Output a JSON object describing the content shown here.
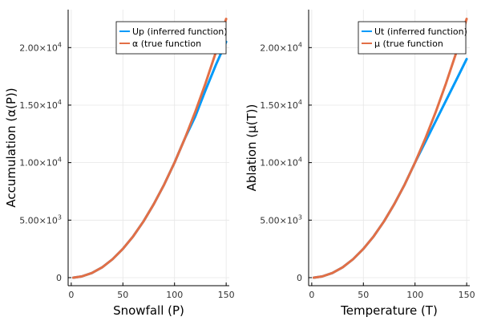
{
  "chart_data": [
    {
      "type": "line",
      "xlabel": "Snowfall (P)",
      "ylabel": "Accumulation (α(P))",
      "xlim": [
        -3,
        153
      ],
      "ylim": [
        -700,
        23300
      ],
      "xticks": [
        0,
        50,
        100,
        150
      ],
      "xtick_labels": [
        "0",
        "50",
        "100",
        "150"
      ],
      "yticks": [
        0,
        5000,
        10000,
        15000,
        20000
      ],
      "ytick_labels": [
        {
          "mantissa": "0",
          "exp": ""
        },
        {
          "mantissa": "5.00×10",
          "exp": "3"
        },
        {
          "mantissa": "1.00×10",
          "exp": "4"
        },
        {
          "mantissa": "1.50×10",
          "exp": "4"
        },
        {
          "mantissa": "2.00×10",
          "exp": "4"
        }
      ],
      "grid": true,
      "legend_position": "top-right",
      "series": [
        {
          "name": "Up (inferred function)",
          "color": "#009af9",
          "x": [
            2,
            10,
            20,
            30,
            40,
            50,
            60,
            70,
            80,
            90,
            100,
            110,
            120,
            130,
            140,
            150
          ],
          "y": [
            0,
            100,
            400,
            900,
            1600,
            2500,
            3600,
            4900,
            6400,
            8100,
            10000,
            12100,
            14000,
            16300,
            18500,
            20500
          ]
        },
        {
          "name": "α (true function",
          "color": "#e26f46",
          "x": [
            2,
            10,
            20,
            30,
            40,
            50,
            60,
            70,
            80,
            90,
            100,
            110,
            120,
            130,
            140,
            150
          ],
          "y": [
            0,
            100,
            400,
            900,
            1600,
            2500,
            3600,
            4900,
            6400,
            8100,
            10000,
            12100,
            14400,
            16900,
            19600,
            22500
          ]
        }
      ]
    },
    {
      "type": "line",
      "xlabel": "Temperature (T)",
      "ylabel": "Ablation (μ(T))",
      "xlim": [
        -3,
        153
      ],
      "ylim": [
        -700,
        23300
      ],
      "xticks": [
        0,
        50,
        100,
        150
      ],
      "xtick_labels": [
        "0",
        "50",
        "100",
        "150"
      ],
      "yticks": [
        0,
        5000,
        10000,
        15000,
        20000
      ],
      "ytick_labels": [
        {
          "mantissa": "0",
          "exp": ""
        },
        {
          "mantissa": "5.00×10",
          "exp": "3"
        },
        {
          "mantissa": "1.00×10",
          "exp": "4"
        },
        {
          "mantissa": "1.50×10",
          "exp": "4"
        },
        {
          "mantissa": "2.00×10",
          "exp": "4"
        }
      ],
      "grid": true,
      "legend_position": "top-right",
      "series": [
        {
          "name": "Ut (inferred function)",
          "color": "#009af9",
          "x": [
            2,
            10,
            20,
            30,
            40,
            50,
            60,
            70,
            80,
            90,
            100,
            110,
            120,
            130,
            140,
            150
          ],
          "y": [
            0,
            100,
            400,
            900,
            1600,
            2500,
            3600,
            4900,
            6400,
            8100,
            10000,
            11800,
            13600,
            15400,
            17200,
            19000
          ]
        },
        {
          "name": "μ (true function",
          "color": "#e26f46",
          "x": [
            2,
            10,
            20,
            30,
            40,
            50,
            60,
            70,
            80,
            90,
            100,
            110,
            120,
            130,
            140,
            150
          ],
          "y": [
            0,
            100,
            400,
            900,
            1600,
            2500,
            3600,
            4900,
            6400,
            8100,
            10000,
            12100,
            14400,
            16900,
            19600,
            22500
          ]
        }
      ]
    }
  ]
}
